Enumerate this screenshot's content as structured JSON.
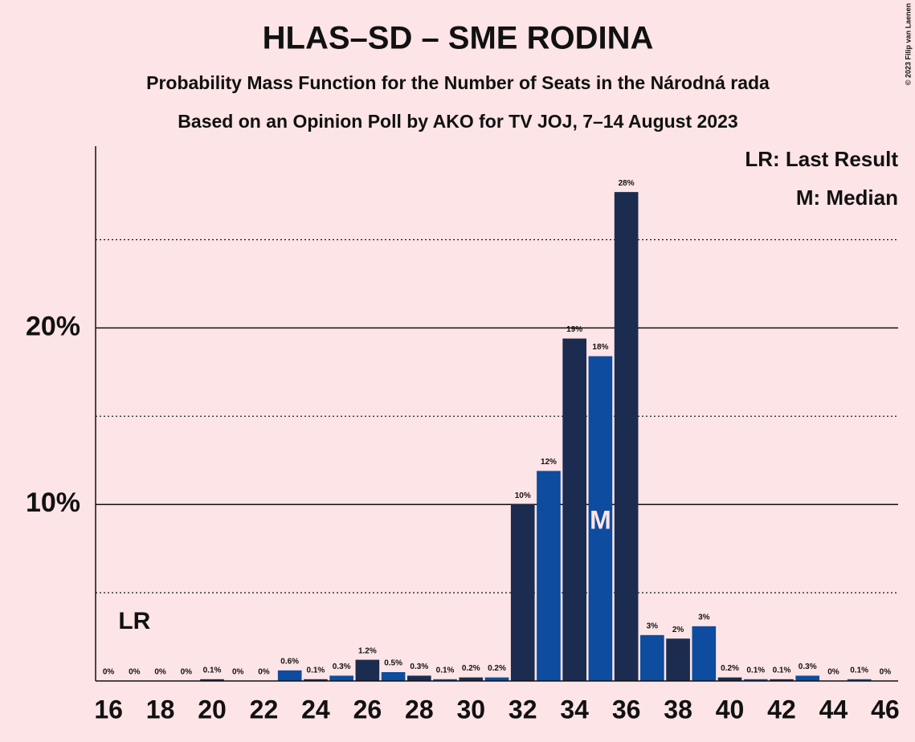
{
  "chart_data": {
    "type": "bar",
    "title": "HLAS–SD – SME RODINA",
    "subtitle": "Probability Mass Function for the Number of Seats in the Národná rada",
    "subtitle2": "Based on an Opinion Poll by AKO for TV JOJ, 7–14 August 2023",
    "copyright": "© 2023 Filip van Laenen",
    "x": [
      16,
      17,
      18,
      19,
      20,
      21,
      22,
      23,
      24,
      25,
      26,
      27,
      28,
      29,
      30,
      31,
      32,
      33,
      34,
      35,
      36,
      37,
      38,
      39,
      40,
      41,
      42,
      43,
      44,
      45,
      46
    ],
    "values": [
      0,
      0,
      0,
      0,
      0.1,
      0,
      0,
      0.6,
      0.1,
      0.3,
      1.2,
      0.5,
      0.3,
      0.1,
      0.2,
      0.2,
      10,
      11.9,
      19.4,
      18.4,
      27.7,
      2.6,
      2.4,
      3.1,
      0.2,
      0.1,
      0.1,
      0.3,
      0,
      0.1,
      0
    ],
    "value_labels": [
      "0%",
      "0%",
      "0%",
      "0%",
      "0.1%",
      "0%",
      "0%",
      "0.6%",
      "0.1%",
      "0.3%",
      "1.2%",
      "0.5%",
      "0.3%",
      "0.1%",
      "0.2%",
      "0.2%",
      "10%",
      "12%",
      "19%",
      "18%",
      "28%",
      "3%",
      "2%",
      "3%",
      "0.2%",
      "0.1%",
      "0.1%",
      "0.3%",
      "0%",
      "0.1%",
      "0%"
    ],
    "colors": [
      "#1b2c50",
      "#0d4c9e",
      "#1b2c50",
      "#0d4c9e",
      "#1b2c50",
      "#0d4c9e",
      "#1b2c50",
      "#0d4c9e",
      "#1b2c50",
      "#0d4c9e",
      "#1b2c50",
      "#0d4c9e",
      "#1b2c50",
      "#0d4c9e",
      "#1b2c50",
      "#0d4c9e",
      "#1b2c50",
      "#0d4c9e",
      "#1b2c50",
      "#0d4c9e",
      "#1b2c50",
      "#0d4c9e",
      "#1b2c50",
      "#0d4c9e",
      "#1b2c50",
      "#0d4c9e",
      "#1b2c50",
      "#0d4c9e",
      "#1b2c50",
      "#0d4c9e",
      "#1b2c50"
    ],
    "xlim": [
      15.5,
      46.5
    ],
    "xticks": [
      16,
      18,
      20,
      22,
      24,
      26,
      28,
      30,
      32,
      34,
      36,
      38,
      40,
      42,
      44,
      46
    ],
    "ylim": [
      0,
      30.3
    ],
    "yticks": [
      {
        "value": 10,
        "label": "10%"
      },
      {
        "value": 20,
        "label": "20%"
      }
    ],
    "minor_yticks": [
      5,
      15,
      25
    ],
    "last_result": 17,
    "last_result_label": "LR",
    "median": 35,
    "median_label": "M",
    "legend": [
      "LR: Last Result",
      "M: Median"
    ]
  }
}
